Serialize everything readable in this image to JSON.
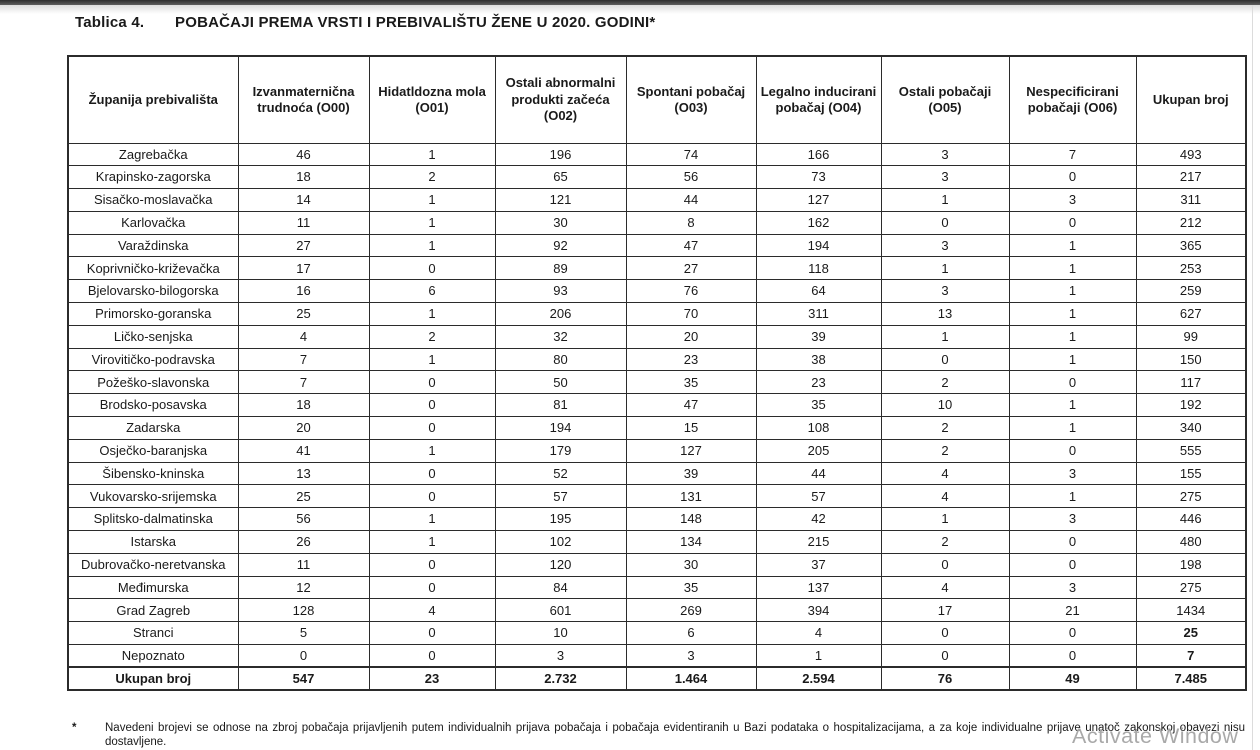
{
  "header": {
    "title_label": "Tablica 4.",
    "title_text": "POBAČAJI PREMA VRSTI I PREBIVALIŠTU ŽENE U 2020. GODINI*"
  },
  "table": {
    "columns": [
      "Županija prebivališta",
      "Izvanmaternična trudnoća (O00)",
      "Hidatldozna mola (O01)",
      "Ostali abnormalni produkti začeća (O02)",
      "Spontani pobačaj (O03)",
      "Legalno inducirani pobačaj (O04)",
      "Ostali pobačaji (O05)",
      "Nespecificirani pobačaji (O06)",
      "Ukupan broj"
    ],
    "rows": [
      {
        "name": "Zagrebačka",
        "values": [
          "46",
          "1",
          "196",
          "74",
          "166",
          "3",
          "7",
          "493"
        ]
      },
      {
        "name": "Krapinsko-zagorska",
        "values": [
          "18",
          "2",
          "65",
          "56",
          "73",
          "3",
          "0",
          "217"
        ]
      },
      {
        "name": "Sisačko-moslavačka",
        "values": [
          "14",
          "1",
          "121",
          "44",
          "127",
          "1",
          "3",
          "311"
        ]
      },
      {
        "name": "Karlovačka",
        "values": [
          "11",
          "1",
          "30",
          "8",
          "162",
          "0",
          "0",
          "212"
        ]
      },
      {
        "name": "Varaždinska",
        "values": [
          "27",
          "1",
          "92",
          "47",
          "194",
          "3",
          "1",
          "365"
        ]
      },
      {
        "name": "Koprivničko-križevačka",
        "values": [
          "17",
          "0",
          "89",
          "27",
          "118",
          "1",
          "1",
          "253"
        ]
      },
      {
        "name": "Bjelovarsko-bilogorska",
        "values": [
          "16",
          "6",
          "93",
          "76",
          "64",
          "3",
          "1",
          "259"
        ]
      },
      {
        "name": "Primorsko-goranska",
        "values": [
          "25",
          "1",
          "206",
          "70",
          "311",
          "13",
          "1",
          "627"
        ]
      },
      {
        "name": "Ličko-senjska",
        "values": [
          "4",
          "2",
          "32",
          "20",
          "39",
          "1",
          "1",
          "99"
        ]
      },
      {
        "name": "Virovitičko-podravska",
        "values": [
          "7",
          "1",
          "80",
          "23",
          "38",
          "0",
          "1",
          "150"
        ]
      },
      {
        "name": "Požeško-slavonska",
        "values": [
          "7",
          "0",
          "50",
          "35",
          "23",
          "2",
          "0",
          "117"
        ]
      },
      {
        "name": "Brodsko-posavska",
        "values": [
          "18",
          "0",
          "81",
          "47",
          "35",
          "10",
          "1",
          "192"
        ]
      },
      {
        "name": "Zadarska",
        "values": [
          "20",
          "0",
          "194",
          "15",
          "108",
          "2",
          "1",
          "340"
        ]
      },
      {
        "name": "Osječko-baranjska",
        "values": [
          "41",
          "1",
          "179",
          "127",
          "205",
          "2",
          "0",
          "555"
        ]
      },
      {
        "name": "Šibensko-kninska",
        "values": [
          "13",
          "0",
          "52",
          "39",
          "44",
          "4",
          "3",
          "155"
        ]
      },
      {
        "name": "Vukovarsko-srijemska",
        "values": [
          "25",
          "0",
          "57",
          "131",
          "57",
          "4",
          "1",
          "275"
        ]
      },
      {
        "name": "Splitsko-dalmatinska",
        "values": [
          "56",
          "1",
          "195",
          "148",
          "42",
          "1",
          "3",
          "446"
        ]
      },
      {
        "name": "Istarska",
        "values": [
          "26",
          "1",
          "102",
          "134",
          "215",
          "2",
          "0",
          "480"
        ]
      },
      {
        "name": "Dubrovačko-neretvanska",
        "values": [
          "11",
          "0",
          "120",
          "30",
          "37",
          "0",
          "0",
          "198"
        ]
      },
      {
        "name": "Međimurska",
        "values": [
          "12",
          "0",
          "84",
          "35",
          "137",
          "4",
          "3",
          "275"
        ]
      },
      {
        "name": "Grad Zagreb",
        "values": [
          "128",
          "4",
          "601",
          "269",
          "394",
          "17",
          "21",
          "1434"
        ]
      },
      {
        "name": "Stranci",
        "values": [
          "5",
          "0",
          "10",
          "6",
          "4",
          "0",
          "0",
          "25"
        ],
        "total_bold": true
      },
      {
        "name": "Nepoznato",
        "values": [
          "0",
          "0",
          "3",
          "3",
          "1",
          "0",
          "0",
          "7"
        ],
        "total_bold": true
      }
    ],
    "total_row": {
      "name": "Ukupan broj",
      "values": [
        "547",
        "23",
        "2.732",
        "1.464",
        "2.594",
        "76",
        "49",
        "7.485"
      ]
    }
  },
  "footnote": {
    "marker": "*",
    "text": "Navedeni brojevi se odnose na zbroj pobačaja prijavljenih putem individualnih prijava pobačaja i pobačaja evidentiranih u Bazi podataka o hospitalizacijama, a za koje individualne prijave unatoč zakonskoj obavezi nisu dostavljene."
  },
  "watermark": {
    "text": "Activate Window"
  },
  "colors": {
    "border": "#2b2b2b",
    "text": "#1a1a1a",
    "watermark": "#a9a9a9",
    "topbar": "#3f3f3f"
  }
}
